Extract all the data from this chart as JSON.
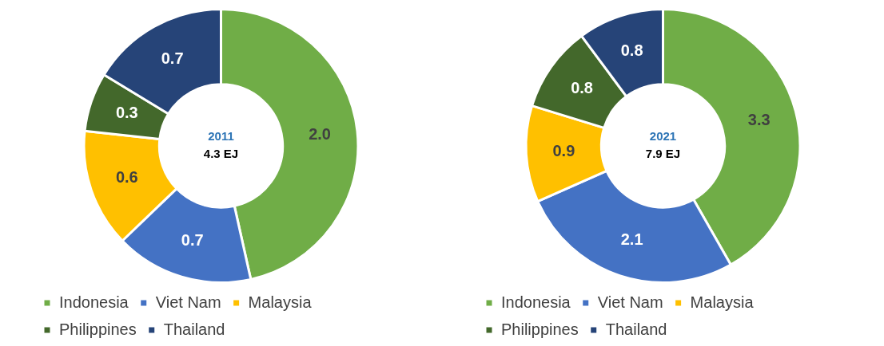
{
  "chart_data": [
    {
      "type": "donut",
      "categories": [
        "Indonesia",
        "Viet Nam",
        "Malaysia",
        "Philippines",
        "Thailand"
      ],
      "values": [
        2.0,
        0.7,
        0.6,
        0.3,
        0.7
      ],
      "value_labels": [
        "2.0",
        "0.7",
        "0.6",
        "0.3",
        "0.7"
      ],
      "colors": [
        "#70ad47",
        "#4472c4",
        "#ffc000",
        "#43682b",
        "#264478"
      ],
      "legend": "bottom",
      "annotations": [
        "2011",
        "4.3 EJ"
      ]
    },
    {
      "type": "donut",
      "categories": [
        "Indonesia",
        "Viet Nam",
        "Malaysia",
        "Philippines",
        "Thailand"
      ],
      "values": [
        3.3,
        2.1,
        0.9,
        0.8,
        0.8
      ],
      "value_labels": [
        "3.3",
        "2.1",
        "0.9",
        "0.8",
        "0.8"
      ],
      "colors": [
        "#70ad47",
        "#4472c4",
        "#ffc000",
        "#43682b",
        "#264478"
      ],
      "legend": "bottom",
      "annotations": [
        "2021",
        "7.9 EJ"
      ]
    }
  ]
}
